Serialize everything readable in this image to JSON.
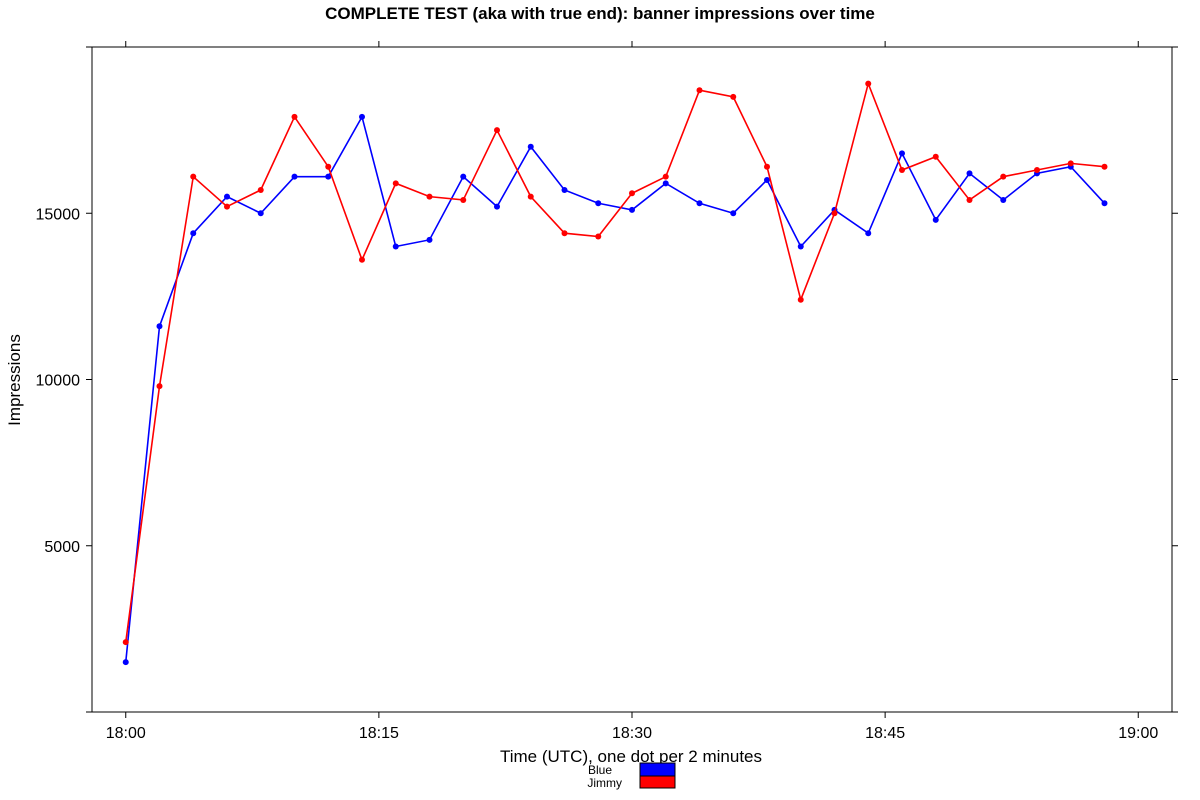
{
  "chart_data": {
    "type": "line",
    "title": "COMPLETE TEST (aka with true end): banner impressions over time",
    "xlabel": "Time (UTC), one dot per 2 minutes",
    "ylabel": "Impressions",
    "x_tick_labels": [
      "18:00",
      "18:15",
      "18:30",
      "18:45",
      "19:00"
    ],
    "y_tick_labels": [
      "5000",
      "10000",
      "15000"
    ],
    "ylim": [
      0,
      20000
    ],
    "xlim_minutes": [
      -2,
      62
    ],
    "grid": false,
    "legend_position": "bottom-center",
    "x_minutes": [
      0,
      2,
      4,
      6,
      8,
      10,
      12,
      14,
      16,
      18,
      20,
      22,
      24,
      26,
      28,
      30,
      32,
      34,
      36,
      38,
      40,
      42,
      44,
      46,
      48,
      50,
      52,
      54,
      56,
      58
    ],
    "series": [
      {
        "name": "Blue",
        "color": "#0000ff",
        "values": [
          1500,
          11600,
          14400,
          15500,
          15000,
          16100,
          16100,
          17900,
          14000,
          14200,
          16100,
          15200,
          17000,
          15700,
          15300,
          15100,
          15900,
          15300,
          15000,
          16000,
          14000,
          15100,
          14400,
          16800,
          14800,
          16200,
          15400,
          16200,
          16400,
          15300
        ]
      },
      {
        "name": "Jimmy",
        "color": "#ff0000",
        "values": [
          2100,
          9800,
          16100,
          15200,
          15700,
          17900,
          16400,
          13600,
          15900,
          15500,
          15400,
          17500,
          15500,
          14400,
          14300,
          15600,
          16100,
          18700,
          18500,
          16400,
          12400,
          15000,
          18900,
          16300,
          16700,
          15400,
          16100,
          16300,
          16500,
          16400
        ]
      }
    ]
  }
}
